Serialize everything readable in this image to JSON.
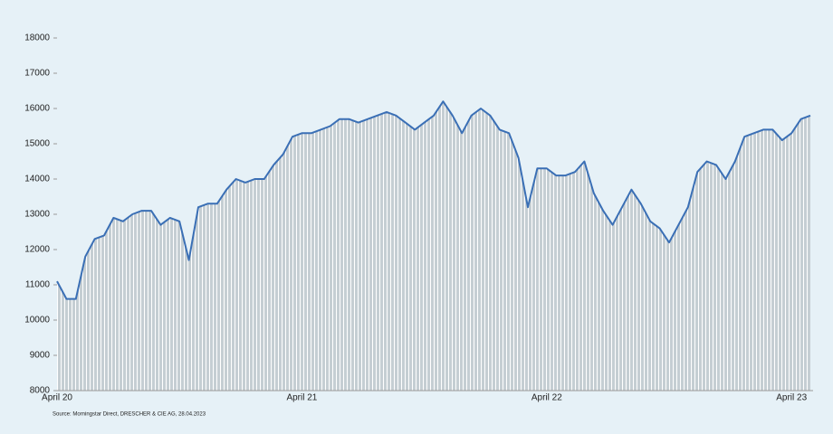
{
  "chart_data": {
    "type": "line",
    "source": "Source: Morningstar Direct, DRESCHER & CIE AG, 28.04.2023",
    "categories": [
      "April 20",
      null,
      null,
      null,
      null,
      null,
      null,
      null,
      null,
      null,
      null,
      null,
      null,
      null,
      null,
      null,
      null,
      null,
      null,
      null,
      null,
      null,
      null,
      null,
      null,
      null,
      "April 21",
      null,
      null,
      null,
      null,
      null,
      null,
      null,
      null,
      null,
      null,
      null,
      null,
      null,
      null,
      null,
      null,
      null,
      null,
      null,
      null,
      null,
      null,
      null,
      null,
      null,
      "April 22",
      null,
      null,
      null,
      null,
      null,
      null,
      null,
      null,
      null,
      null,
      null,
      null,
      null,
      null,
      null,
      null,
      null,
      null,
      null,
      null,
      null,
      null,
      null,
      null,
      null,
      "April 23",
      null,
      null
    ],
    "series": [
      {
        "color": "#3a6fb5",
        "values": [
          11100,
          10600,
          10600,
          11800,
          12300,
          12400,
          12900,
          12800,
          13000,
          13100,
          13100,
          12700,
          12900,
          12800,
          11700,
          13200,
          13300,
          13300,
          13700,
          14000,
          13900,
          14000,
          14000,
          14400,
          14700,
          15200,
          15300,
          15300,
          15400,
          15500,
          15700,
          15700,
          15600,
          15700,
          15800,
          15900,
          15800,
          15600,
          15400,
          15600,
          15800,
          16200,
          15800,
          15300,
          15800,
          16000,
          15800,
          15400,
          15300,
          14600,
          13200,
          14300,
          14300,
          14100,
          14100,
          14200,
          14500,
          13600,
          13100,
          12700,
          13200,
          13700,
          13300,
          12800,
          12600,
          12200,
          12700,
          13200,
          14200,
          14500,
          14400,
          14000,
          14500,
          15200,
          15300,
          15400,
          15400,
          15100,
          15300,
          15700,
          15800
        ]
      }
    ],
    "ylim": [
      8000,
      18000
    ],
    "yticks": [
      8000,
      9000,
      10000,
      11000,
      12000,
      13000,
      14000,
      15000,
      16000,
      17000,
      18000
    ]
  }
}
